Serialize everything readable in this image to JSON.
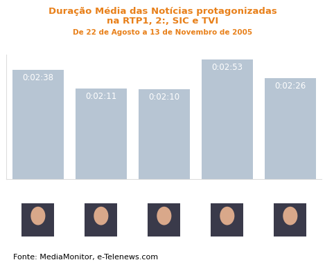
{
  "chart_data": {
    "type": "bar",
    "title": "Duração Média das Notícias protagonizadas\nna RTP1, 2:, SIC e TVI",
    "subtitle": "De 22 de Agosto a 13 de Novembro de 2005",
    "categories": [
      null,
      null,
      null,
      null,
      null
    ],
    "values": [
      158,
      131,
      130,
      173,
      146
    ],
    "value_labels": [
      "0:02:38",
      "0:02:11",
      "0:02:10",
      "0:02:53",
      "0:02:26"
    ],
    "data_labels": true,
    "color": "#b7c5d3",
    "ylim": [
      0,
      180
    ],
    "yticks": [],
    "tick_labels": false,
    "grid": false,
    "annotations": [
      "Fonte: MediaMonitor, e-Telenews.com"
    ]
  }
}
